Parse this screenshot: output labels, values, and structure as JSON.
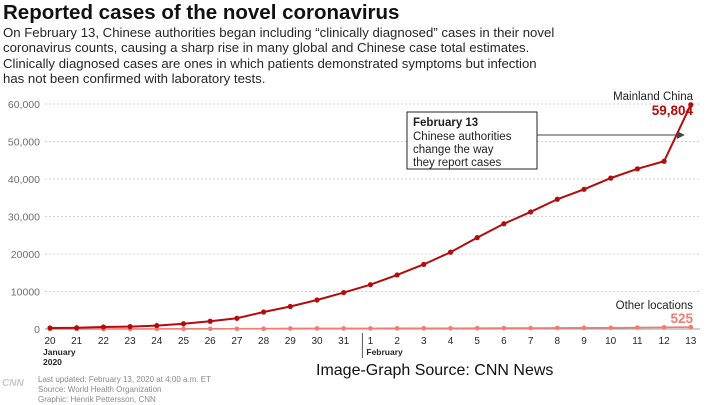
{
  "header": {
    "title": "Reported cases of the novel coronavirus",
    "subtitle_lines": [
      "On February 13, Chinese authorities began including “clinically diagnosed” cases in their novel",
      "coronavirus counts, causing a sharp rise in many global and Chinese case total estimates.",
      "Clinically diagnosed cases are ones in which patients demonstrated symptoms but infection",
      "has not been confirmed with laboratory tests."
    ]
  },
  "chart_data": {
    "type": "line",
    "title": "Reported cases of the novel coronavirus",
    "xlabel": "",
    "ylabel": "",
    "ylim": [
      0,
      60000
    ],
    "yticks": [
      0,
      10000,
      20000,
      30000,
      40000,
      50000,
      60000
    ],
    "ytick_labels": [
      "0",
      "10000",
      "20000",
      "30,000",
      "40,000",
      "50,000",
      "60,000"
    ],
    "categories": [
      "20",
      "21",
      "22",
      "23",
      "24",
      "25",
      "26",
      "27",
      "28",
      "29",
      "30",
      "31",
      "1",
      "2",
      "3",
      "4",
      "5",
      "6",
      "7",
      "8",
      "9",
      "10",
      "11",
      "12",
      "13"
    ],
    "month_labels": [
      {
        "index": 0,
        "lines": [
          "January",
          "2020"
        ]
      },
      {
        "index": 12,
        "lines": [
          "February"
        ]
      }
    ],
    "grid": true,
    "series": [
      {
        "name": "Mainland China",
        "color": "#b30c0c",
        "end_label": "59,804",
        "values": [
          278,
          326,
          547,
          639,
          916,
          1399,
          2062,
          2863,
          4537,
          5997,
          7736,
          9720,
          11821,
          14411,
          17238,
          20471,
          24363,
          28060,
          31211,
          34598,
          37251,
          40235,
          42708,
          44730,
          59804
        ]
      },
      {
        "name": "Other locations",
        "color": "#f47a70",
        "end_label": "525",
        "values": [
          4,
          6,
          9,
          14,
          25,
          40,
          56,
          68,
          82,
          146,
          152,
          159,
          166,
          178,
          183,
          191,
          216,
          240,
          270,
          288,
          307,
          319,
          395,
          441,
          525
        ]
      }
    ],
    "annotation": {
      "title": "February 13",
      "lines": [
        "Chinese authorities",
        "change the way",
        "they report cases"
      ],
      "target_index": 24
    }
  },
  "credit": "Image-Graph Source: CNN News",
  "footer": {
    "logo": "CNN",
    "lines": [
      "Last updated: February 13, 2020 at 4:00 a.m. ET",
      "Source: World Health Organization",
      "Graphic: Henrik Pettersson, CNN"
    ]
  }
}
